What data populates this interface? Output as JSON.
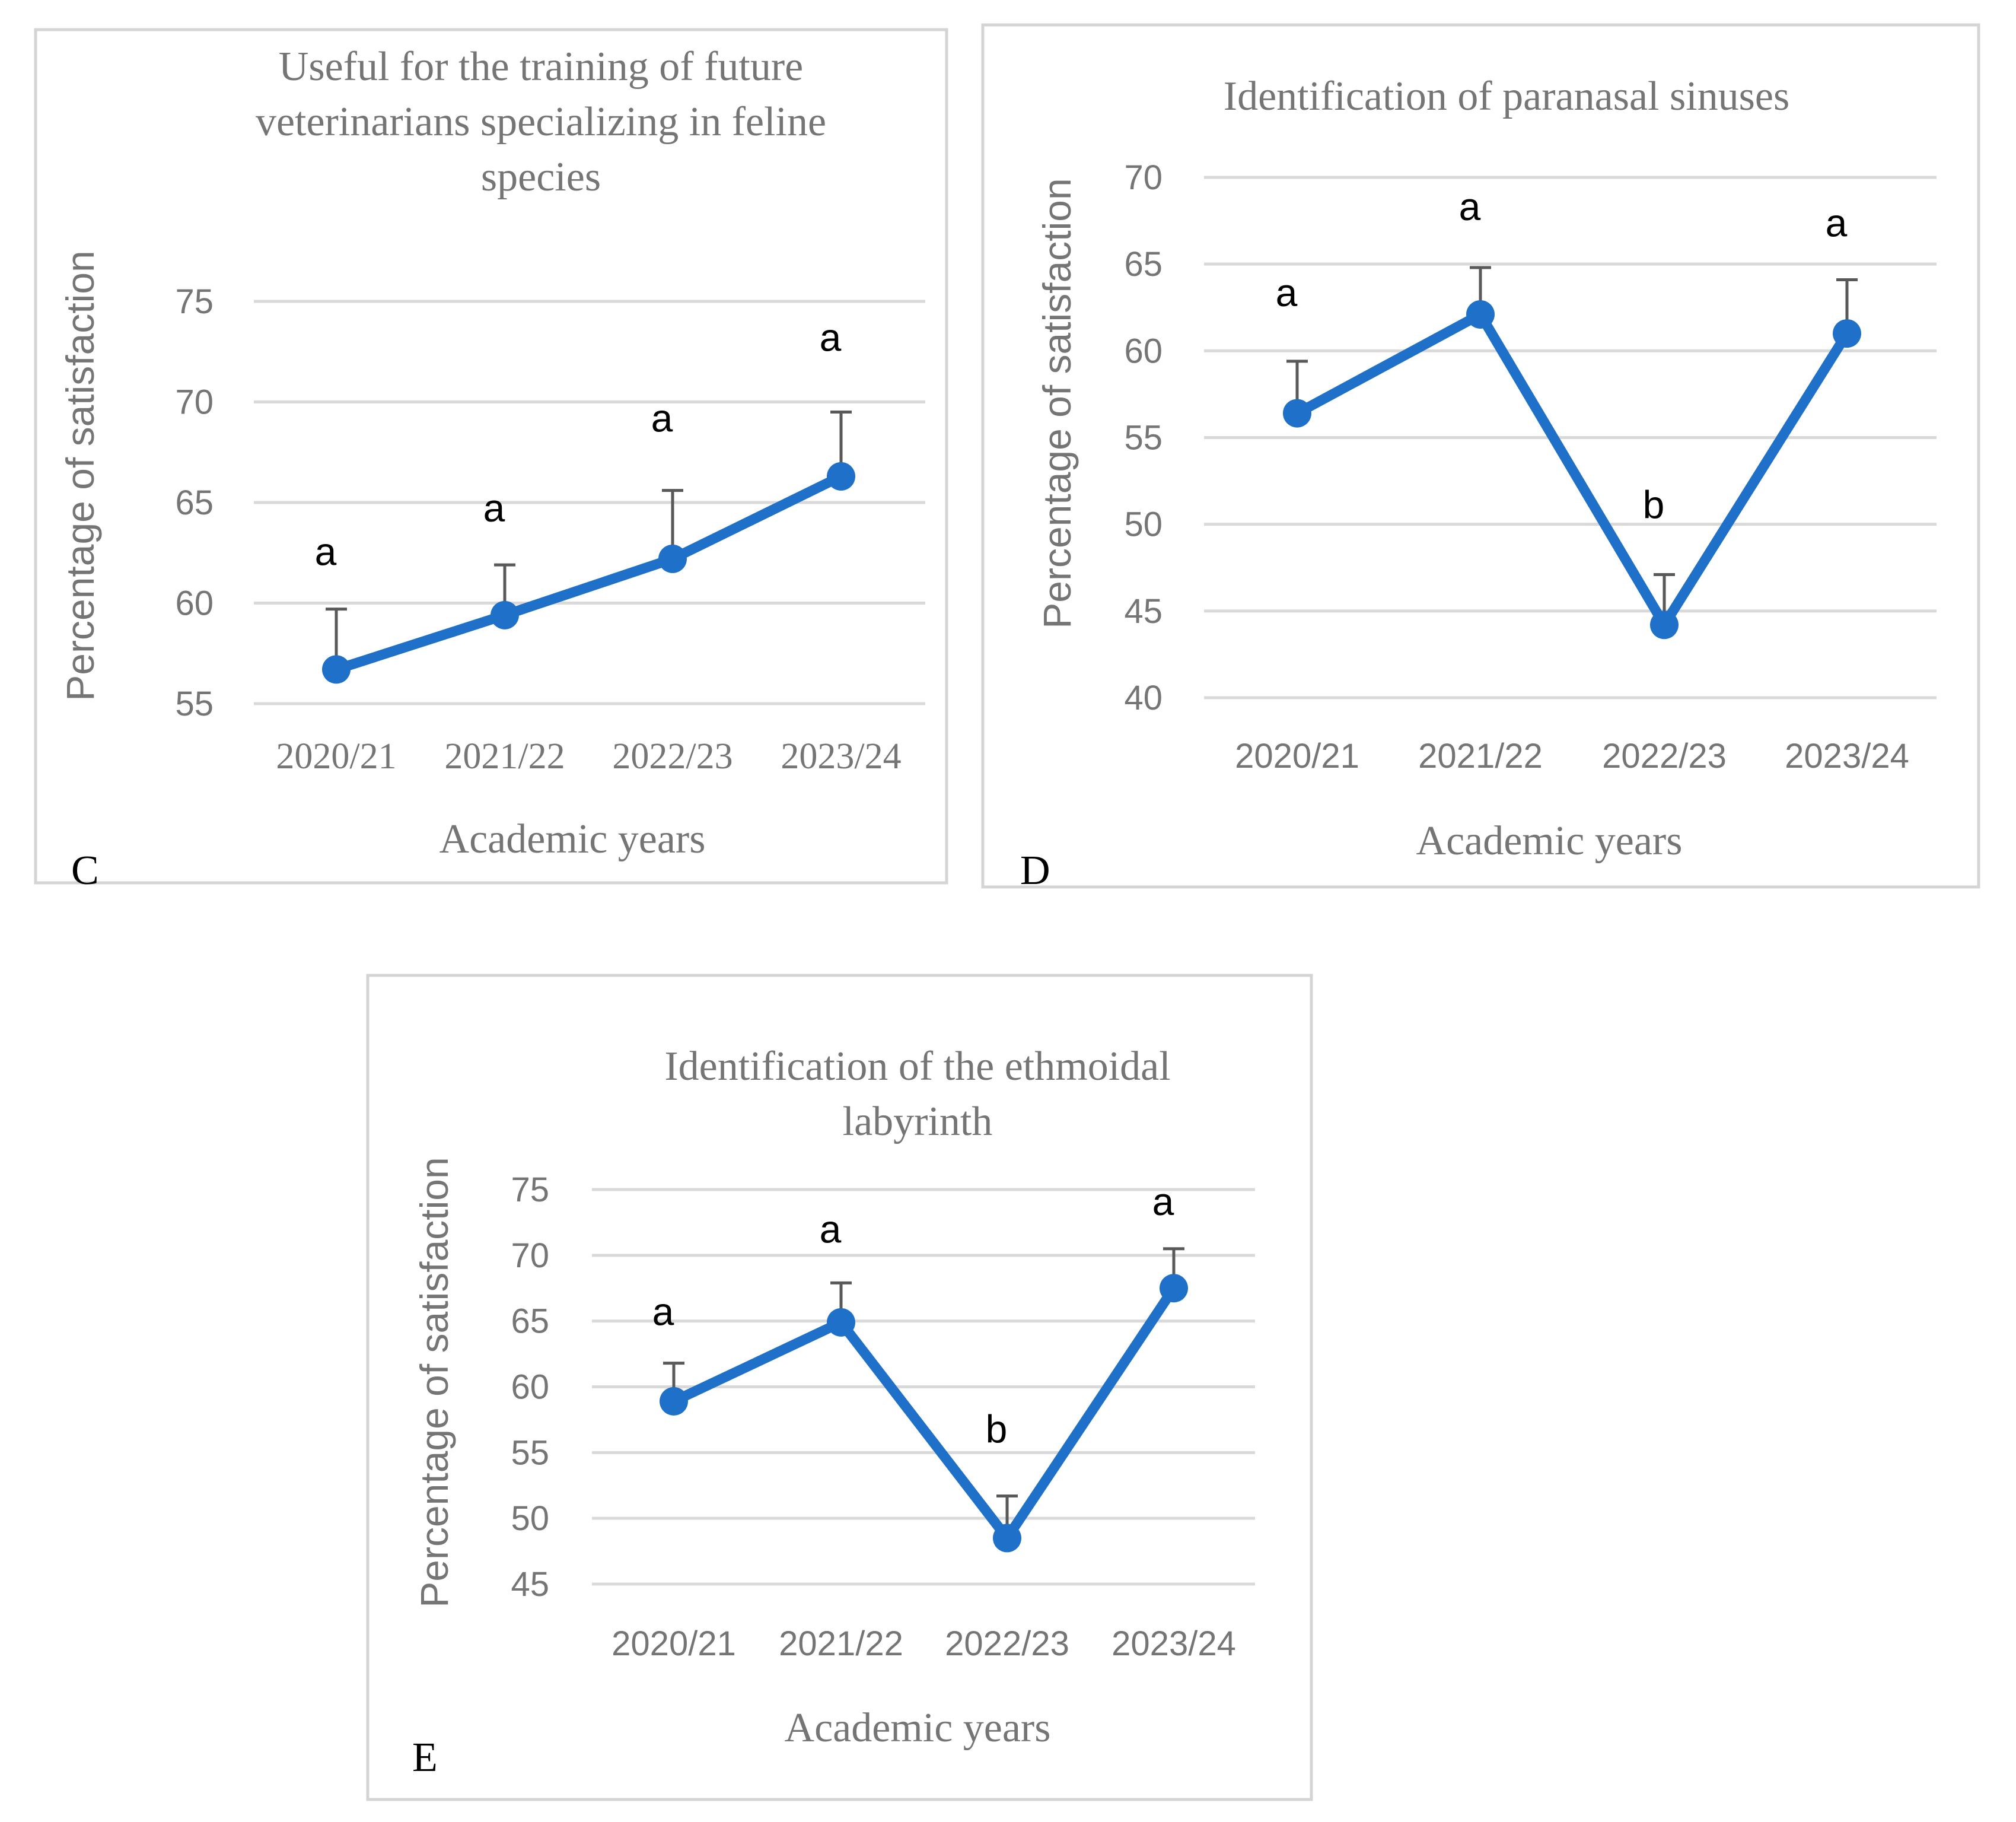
{
  "colors": {
    "series": "#1f70c8",
    "error_bar": "#595959",
    "grid": "#d9d9d9",
    "text": "#757575",
    "frame": "#d4d4d4"
  },
  "chart_data": [
    {
      "type": "line",
      "panel": "C",
      "title": "Useful for the training of future veterinarians specializing in feline species",
      "title_lines": [
        "Useful for the training of future",
        "veterinarians specializing in feline",
        "species"
      ],
      "xlabel": "Academic years",
      "ylabel": "Percentage of satisfaction",
      "categories": [
        "2020/21",
        "2021/22",
        "2022/23",
        "2023/24"
      ],
      "values": [
        56.7,
        59.4,
        62.2,
        66.3
      ],
      "error_upper": [
        3.0,
        2.5,
        3.4,
        3.2
      ],
      "significance": [
        "a",
        "a",
        "a",
        "a"
      ],
      "yticks": [
        "55",
        "60",
        "65",
        "70",
        "75"
      ],
      "ylim": [
        55,
        75
      ],
      "grid": true,
      "tick_font": "serif"
    },
    {
      "type": "line",
      "panel": "D",
      "title": "Identification of paranasal sinuses",
      "title_lines": [
        "Identification of paranasal sinuses"
      ],
      "xlabel": "Academic years",
      "ylabel": "Percentage of satisfaction",
      "categories": [
        "2020/21",
        "2021/22",
        "2022/23",
        "2023/24"
      ],
      "values": [
        56.4,
        62.1,
        44.2,
        61.0
      ],
      "error_upper": [
        3.0,
        2.7,
        2.9,
        3.1
      ],
      "significance": [
        "a",
        "a",
        "b",
        "a"
      ],
      "yticks": [
        "40",
        "45",
        "50",
        "55",
        "60",
        "65",
        "70"
      ],
      "ylim": [
        40,
        70
      ],
      "grid": true,
      "tick_font": "sans"
    },
    {
      "type": "line",
      "panel": "E",
      "title": "Identification of the ethmoidal labyrinth",
      "title_lines": [
        "Identification of the ethmoidal",
        "labyrinth"
      ],
      "xlabel": "Academic years",
      "ylabel": "Percentage of satisfaction",
      "categories": [
        "2020/21",
        "2021/22",
        "2022/23",
        "2023/24"
      ],
      "values": [
        58.9,
        64.9,
        48.5,
        67.5
      ],
      "error_upper": [
        2.9,
        3.0,
        3.2,
        3.0
      ],
      "significance": [
        "a",
        "a",
        "b",
        "a"
      ],
      "yticks": [
        "45",
        "50",
        "55",
        "60",
        "65",
        "70",
        "75"
      ],
      "ylim": [
        45,
        75
      ],
      "grid": true,
      "tick_font": "sans"
    }
  ]
}
